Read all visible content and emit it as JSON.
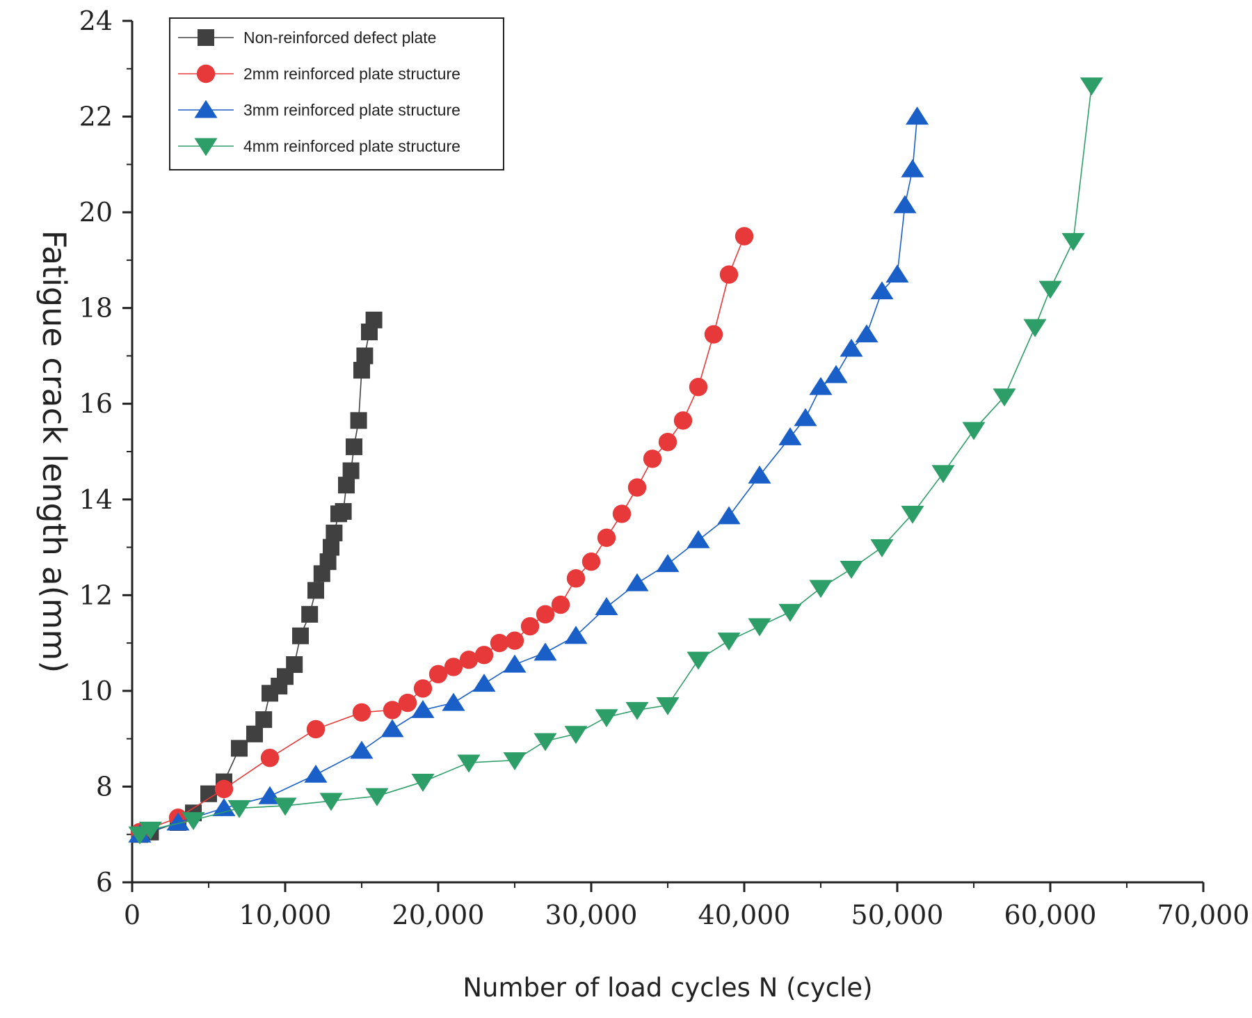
{
  "chart_data": {
    "type": "line",
    "title": "",
    "xlabel": "Number of load cycles N (cycle)",
    "ylabel": "Fatigue crack length a(mm)",
    "xlim": [
      0,
      70000
    ],
    "ylim": [
      6,
      24
    ],
    "xticks": [
      0,
      10000,
      20000,
      30000,
      40000,
      50000,
      60000,
      70000
    ],
    "xtick_labels": [
      "0",
      "10,000",
      "20,000",
      "30,000",
      "40,000",
      "50,000",
      "60,000",
      "70,000"
    ],
    "yticks": [
      6,
      8,
      10,
      12,
      14,
      16,
      18,
      20,
      22,
      24
    ],
    "ytick_labels": [
      "6",
      "8",
      "10",
      "12",
      "14",
      "16",
      "18",
      "20",
      "22",
      "24"
    ],
    "grid": false,
    "legend_position": "top-left",
    "series": [
      {
        "name": "Non-reinforced defect plate",
        "color": "#404040",
        "marker": "square",
        "x": [
          500,
          1200,
          3000,
          4000,
          5000,
          6000,
          7000,
          8000,
          8600,
          9000,
          9600,
          10000,
          10600,
          11000,
          11600,
          12000,
          12400,
          12800,
          13000,
          13200,
          13500,
          13800,
          14000,
          14300,
          14500,
          14800,
          15000,
          15200,
          15500,
          15800
        ],
        "y": [
          7.0,
          7.05,
          7.25,
          7.45,
          7.85,
          8.1,
          8.8,
          9.1,
          9.4,
          9.95,
          10.1,
          10.3,
          10.55,
          11.15,
          11.6,
          12.1,
          12.45,
          12.7,
          13.0,
          13.3,
          13.7,
          13.75,
          14.3,
          14.6,
          15.1,
          15.65,
          16.7,
          17.0,
          17.5,
          17.75
        ]
      },
      {
        "name": "2mm reinforced plate structure",
        "color": "#e8393a",
        "marker": "circle",
        "x": [
          500,
          3000,
          6000,
          9000,
          12000,
          15000,
          17000,
          18000,
          19000,
          20000,
          21000,
          22000,
          23000,
          24000,
          25000,
          26000,
          27000,
          28000,
          29000,
          30000,
          31000,
          32000,
          33000,
          34000,
          35000,
          36000,
          37000,
          38000,
          39000,
          40000
        ],
        "y": [
          7.05,
          7.35,
          7.95,
          8.6,
          9.2,
          9.55,
          9.6,
          9.75,
          10.05,
          10.35,
          10.5,
          10.65,
          10.75,
          11.0,
          11.05,
          11.35,
          11.6,
          11.8,
          12.35,
          12.7,
          13.2,
          13.7,
          14.25,
          14.85,
          15.2,
          15.65,
          16.35,
          17.45,
          18.7,
          19.5
        ]
      },
      {
        "name": "3mm reinforced plate structure",
        "color": "#1a5fc7",
        "marker": "triangle-up",
        "x": [
          500,
          3000,
          6000,
          9000,
          12000,
          15000,
          17000,
          19000,
          21000,
          23000,
          25000,
          27000,
          29000,
          31000,
          33000,
          35000,
          37000,
          39000,
          41000,
          43000,
          44000,
          45000,
          46000,
          47000,
          48000,
          49000,
          50000,
          50500,
          51000,
          51300
        ],
        "y": [
          7.0,
          7.25,
          7.55,
          7.8,
          8.25,
          8.75,
          9.2,
          9.6,
          9.75,
          10.15,
          10.55,
          10.8,
          11.15,
          11.75,
          12.25,
          12.65,
          13.15,
          13.65,
          14.5,
          15.3,
          15.7,
          16.35,
          16.6,
          17.15,
          17.45,
          18.35,
          18.7,
          20.15,
          20.9,
          22.0
        ]
      },
      {
        "name": "4mm reinforced plate structure",
        "color": "#2e9e68",
        "marker": "triangle-down",
        "x": [
          500,
          1200,
          4000,
          7000,
          10000,
          13000,
          16000,
          19000,
          22000,
          25000,
          27000,
          29000,
          31000,
          33000,
          35000,
          37000,
          39000,
          41000,
          43000,
          45000,
          47000,
          49000,
          51000,
          53000,
          55000,
          57000,
          59000,
          60000,
          61500,
          62700
        ],
        "y": [
          7.0,
          7.1,
          7.3,
          7.55,
          7.6,
          7.7,
          7.8,
          8.1,
          8.5,
          8.55,
          8.95,
          9.1,
          9.45,
          9.6,
          9.7,
          10.65,
          11.05,
          11.35,
          11.65,
          12.15,
          12.55,
          13.0,
          13.7,
          14.55,
          15.45,
          16.15,
          17.6,
          18.4,
          19.4,
          22.65
        ]
      }
    ]
  }
}
